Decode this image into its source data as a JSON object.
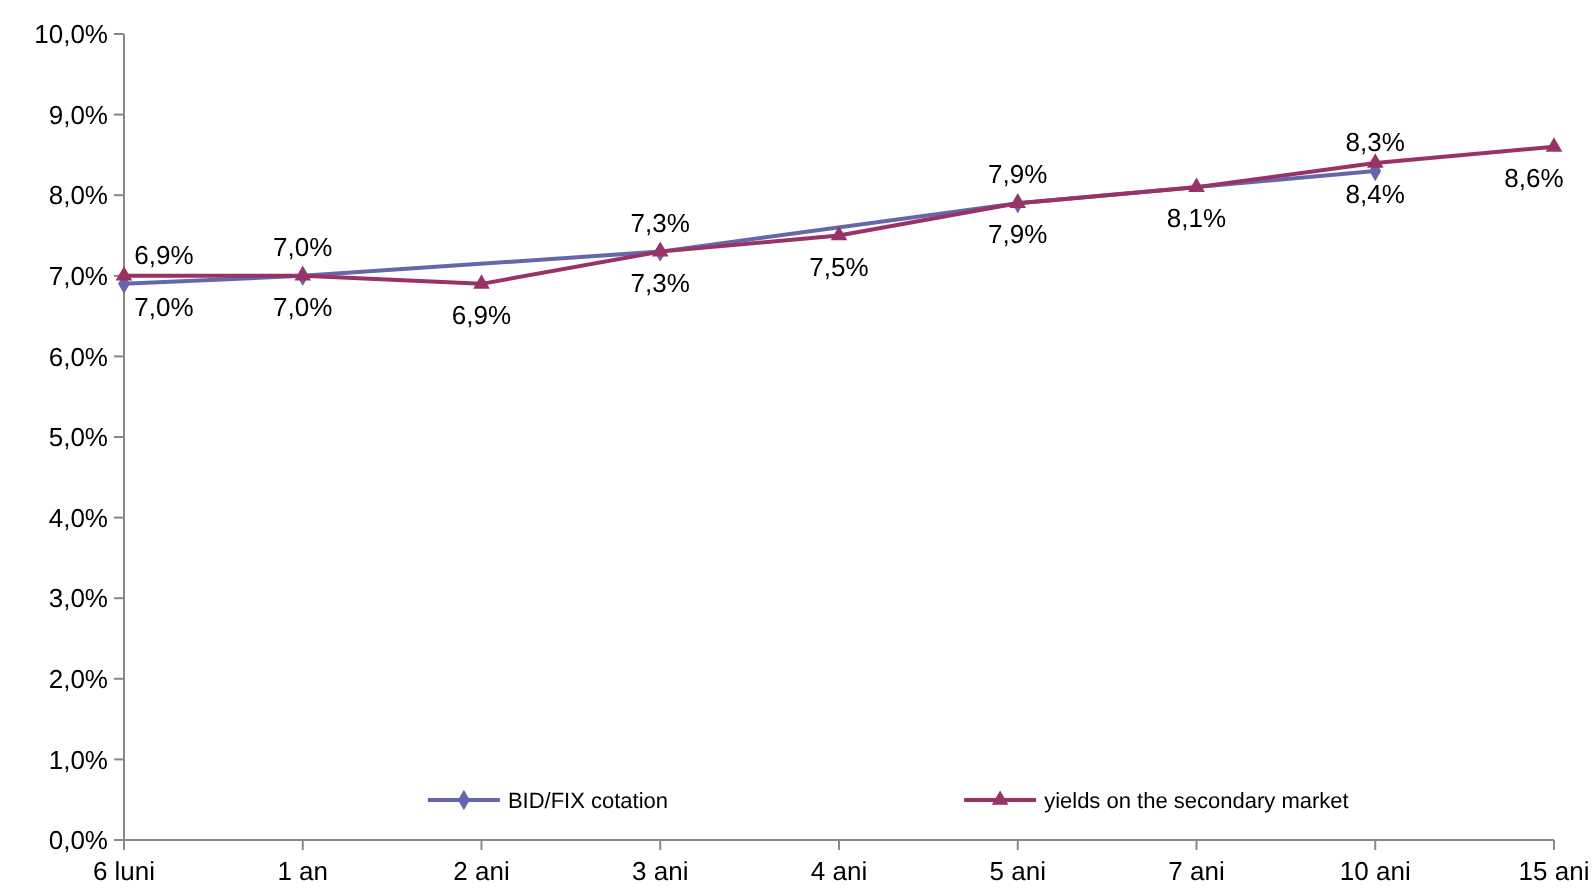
{
  "chart_data": {
    "type": "line",
    "categories": [
      "6 luni",
      "1 an",
      "2 ani",
      "3 ani",
      "4 ani",
      "5 ani",
      "7 ani",
      "10 ani",
      "15 ani"
    ],
    "series": [
      {
        "name": "BID/FIX cotation",
        "color": "#6666aa",
        "marker": "diamond",
        "values": [
          6.9,
          7.0,
          null,
          7.3,
          null,
          7.9,
          null,
          8.3,
          null
        ],
        "value_labels": [
          "6,9%",
          "7,0%",
          null,
          "7,3%",
          null,
          "7,9%",
          null,
          "8,3%",
          null
        ]
      },
      {
        "name": "yields on the secondary market",
        "color": "#993366",
        "marker": "triangle",
        "values": [
          7.0,
          7.0,
          6.9,
          7.3,
          7.5,
          7.9,
          8.1,
          8.4,
          8.6
        ],
        "value_labels": [
          "7,0%",
          "7,0%",
          "6,9%",
          "7,3%",
          "7,5%",
          "7,9%",
          "8,1%",
          "8,4%",
          "8,6%"
        ]
      }
    ],
    "ylim": [
      0,
      10
    ],
    "yticks": [
      {
        "value": 0,
        "label": "0,0%"
      },
      {
        "value": 1,
        "label": "1,0%"
      },
      {
        "value": 2,
        "label": "2,0%"
      },
      {
        "value": 3,
        "label": "3,0%"
      },
      {
        "value": 4,
        "label": "4,0%"
      },
      {
        "value": 5,
        "label": "5,0%"
      },
      {
        "value": 6,
        "label": "6,0%"
      },
      {
        "value": 7,
        "label": "7,0%"
      },
      {
        "value": 8,
        "label": "8,0%"
      },
      {
        "value": 9,
        "label": "9,0%"
      },
      {
        "value": 10,
        "label": "10,0%"
      }
    ],
    "grid": false,
    "legend": "bottom"
  }
}
